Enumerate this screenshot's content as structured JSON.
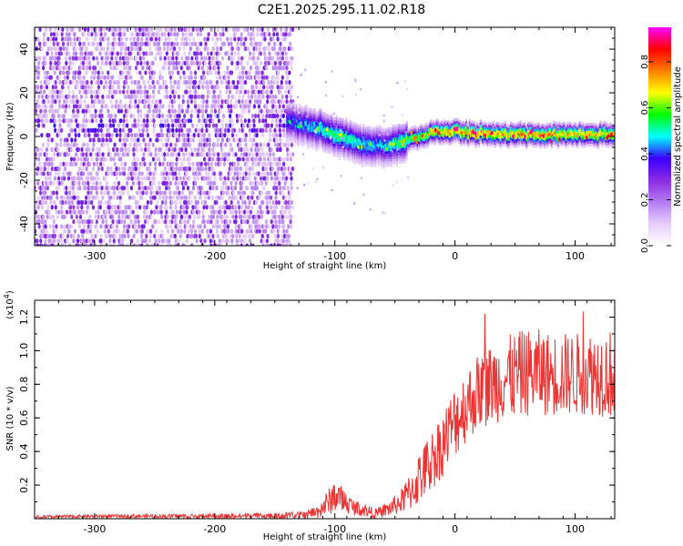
{
  "title": "C2E1.2025.295.11.02.R18",
  "chart_data": [
    {
      "type": "heatmap",
      "xlabel": "Height of straight line (km)",
      "ylabel": "Frequency (Hz)",
      "xlim": [
        -350,
        133
      ],
      "ylim": [
        -50,
        50
      ],
      "xticks": [
        -300,
        -200,
        -100,
        0,
        100
      ],
      "yticks": [
        -40,
        -20,
        0,
        20,
        40
      ],
      "colorbar": {
        "label": "Normalized spectral amplitude",
        "range": [
          0.0,
          0.95
        ],
        "ticks": [
          0.0,
          0.2,
          0.4,
          0.6,
          0.8
        ],
        "tick_labels": [
          "0.0",
          "0.2",
          "0.4",
          "0.6",
          "0.8"
        ],
        "colors": [
          "#ffffff",
          "#e6cdfa",
          "#b27bf2",
          "#8a2be2",
          "#3a00ff",
          "#00ffff",
          "#00ff00",
          "#ffff00",
          "#ff7f00",
          "#ff0000",
          "#ff00ff"
        ]
      },
      "ridge_trace": {
        "description": "frequency of peak spectral amplitude vs height",
        "x": [
          -300,
          -250,
          -210,
          -180,
          -140,
          -120,
          -100,
          -80,
          -60,
          -45,
          -30,
          -15,
          0,
          30,
          60,
          100,
          133
        ],
        "frequency": [
          3,
          3,
          6,
          4,
          7,
          5,
          1,
          -3,
          -5,
          -3,
          0,
          2,
          2,
          1,
          1,
          1,
          1
        ],
        "amplitude": [
          0.3,
          0.32,
          0.38,
          0.35,
          0.45,
          0.52,
          0.6,
          0.55,
          0.5,
          0.62,
          0.7,
          0.8,
          0.85,
          0.82,
          0.85,
          0.8,
          0.78
        ]
      }
    },
    {
      "type": "line",
      "series_name": "SNR",
      "color": "#ee3333",
      "xlabel": "Height of straight line (km)",
      "ylabel": "SNR (10 * v/v)",
      "scale_label": "(x10",
      "scale_exponent": "4",
      "scale_close": ")",
      "xlim": [
        -350,
        133
      ],
      "ylim": [
        0.0,
        1.3
      ],
      "xticks": [
        -300,
        -200,
        -100,
        0,
        100
      ],
      "yticks": [
        0.2,
        0.4,
        0.6,
        0.8,
        1.0,
        1.2
      ],
      "ytick_labels": [
        "0.2",
        "0.4",
        "0.6",
        "0.8",
        "1.0",
        "1.2"
      ],
      "envelope": {
        "x": [
          -350,
          -300,
          -200,
          -150,
          -130,
          -115,
          -105,
          -100,
          -95,
          -85,
          -75,
          -65,
          -55,
          -45,
          -40,
          -35,
          -30,
          -20,
          -10,
          0,
          10,
          20,
          30,
          40,
          50,
          60,
          70,
          80,
          90,
          100,
          110,
          120,
          133
        ],
        "mean": [
          0.01,
          0.015,
          0.015,
          0.015,
          0.02,
          0.04,
          0.1,
          0.14,
          0.12,
          0.07,
          0.05,
          0.03,
          0.06,
          0.1,
          0.14,
          0.18,
          0.24,
          0.34,
          0.45,
          0.58,
          0.68,
          0.76,
          0.8,
          0.83,
          0.85,
          0.87,
          0.87,
          0.86,
          0.86,
          0.86,
          0.87,
          0.87,
          0.86
        ],
        "spread": [
          0.01,
          0.01,
          0.015,
          0.02,
          0.02,
          0.04,
          0.08,
          0.1,
          0.08,
          0.05,
          0.04,
          0.03,
          0.05,
          0.07,
          0.1,
          0.13,
          0.16,
          0.18,
          0.2,
          0.22,
          0.22,
          0.23,
          0.24,
          0.25,
          0.26,
          0.26,
          0.26,
          0.25,
          0.25,
          0.25,
          0.25,
          0.26,
          0.27
        ]
      }
    }
  ]
}
